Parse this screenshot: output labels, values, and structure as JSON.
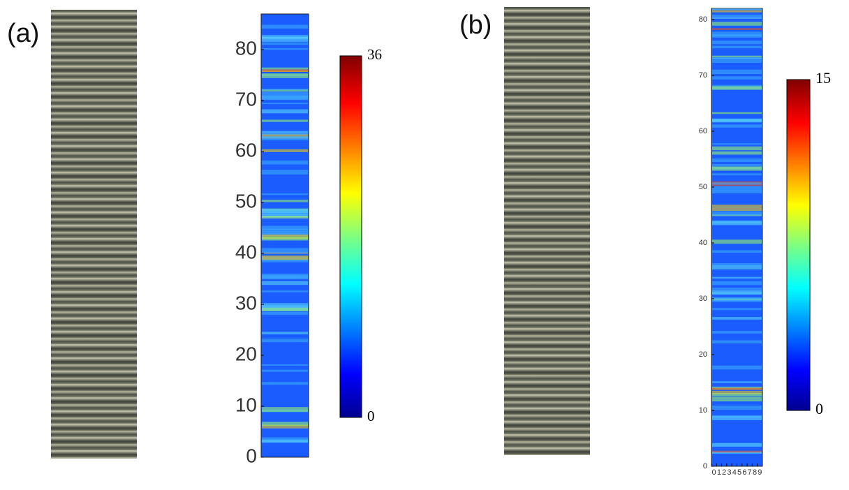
{
  "panels": [
    {
      "label": "(a)",
      "yaxis": {
        "lim": [
          0,
          87
        ],
        "ticks": [
          0,
          10,
          20,
          30,
          40,
          50,
          60,
          70,
          80
        ]
      },
      "colorbar": {
        "lim": [
          0,
          36
        ],
        "ticks": [
          0,
          36
        ]
      }
    },
    {
      "label": "(b)",
      "yaxis": {
        "lim": [
          0,
          82
        ],
        "ticks": [
          0,
          10,
          20,
          30,
          40,
          50,
          60,
          70,
          80
        ]
      },
      "xaxis": {
        "lim": [
          0,
          10
        ],
        "ticks": [
          0,
          1,
          2,
          3,
          4,
          5,
          6,
          7,
          8,
          9
        ]
      },
      "colorbar": {
        "lim": [
          0,
          15
        ],
        "ticks": [
          0,
          15
        ]
      }
    }
  ]
}
